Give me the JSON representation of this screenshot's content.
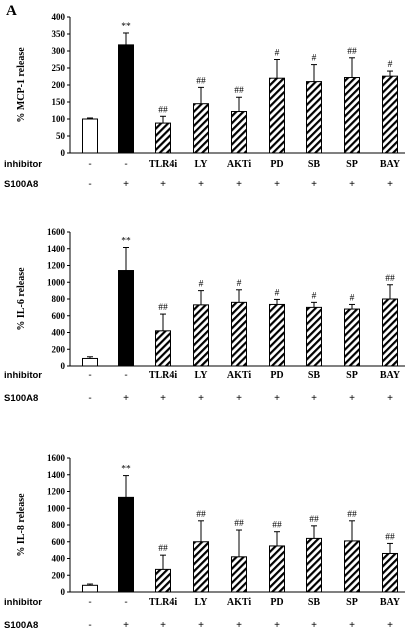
{
  "panel_label": "A",
  "row_labels": {
    "inhibitor": "inhibitor",
    "s100a8": "S100A8"
  },
  "inhibitor_row": [
    "-",
    "-",
    "TLR4i",
    "LY",
    "AKTi",
    "PD",
    "SB",
    "SP",
    "BAY"
  ],
  "s100a8_row": [
    "-",
    "+",
    "+",
    "+",
    "+",
    "+",
    "+",
    "+",
    "+"
  ],
  "colors": {
    "control": "#ffffff",
    "s100a8": "#000000",
    "inhibited": "hatched"
  },
  "chart_data": [
    {
      "type": "bar",
      "ylabel": "% MCP-1 release",
      "ylim": [
        0,
        400
      ],
      "yticks": [
        0,
        50,
        100,
        150,
        200,
        250,
        300,
        350,
        400
      ],
      "values": [
        100,
        318,
        88,
        145,
        122,
        220,
        210,
        222,
        226
      ],
      "errors": [
        3,
        35,
        20,
        48,
        42,
        55,
        50,
        58,
        15
      ],
      "annotations": [
        "",
        "**",
        "##",
        "##",
        "##",
        "#",
        "#",
        "##",
        "#"
      ]
    },
    {
      "type": "bar",
      "ylabel": "% IL-6 release",
      "ylim": [
        0,
        1600
      ],
      "yticks": [
        0,
        200,
        400,
        600,
        800,
        1000,
        1200,
        1400,
        1600
      ],
      "values": [
        90,
        1140,
        420,
        730,
        760,
        735,
        700,
        680,
        800
      ],
      "errors": [
        20,
        275,
        200,
        170,
        150,
        60,
        60,
        55,
        170
      ],
      "annotations": [
        "",
        "**",
        "##",
        "#",
        "#",
        "#",
        "#",
        "#",
        "##"
      ]
    },
    {
      "type": "bar",
      "ylabel": "% IL-8 release",
      "ylim": [
        0,
        1600
      ],
      "yticks": [
        0,
        200,
        400,
        600,
        800,
        1000,
        1200,
        1400,
        1600
      ],
      "values": [
        80,
        1130,
        270,
        600,
        420,
        550,
        640,
        610,
        460
      ],
      "errors": [
        15,
        260,
        170,
        250,
        320,
        170,
        150,
        240,
        120
      ],
      "annotations": [
        "",
        "**",
        "##",
        "##",
        "##",
        "##",
        "##",
        "##",
        "##"
      ]
    }
  ]
}
